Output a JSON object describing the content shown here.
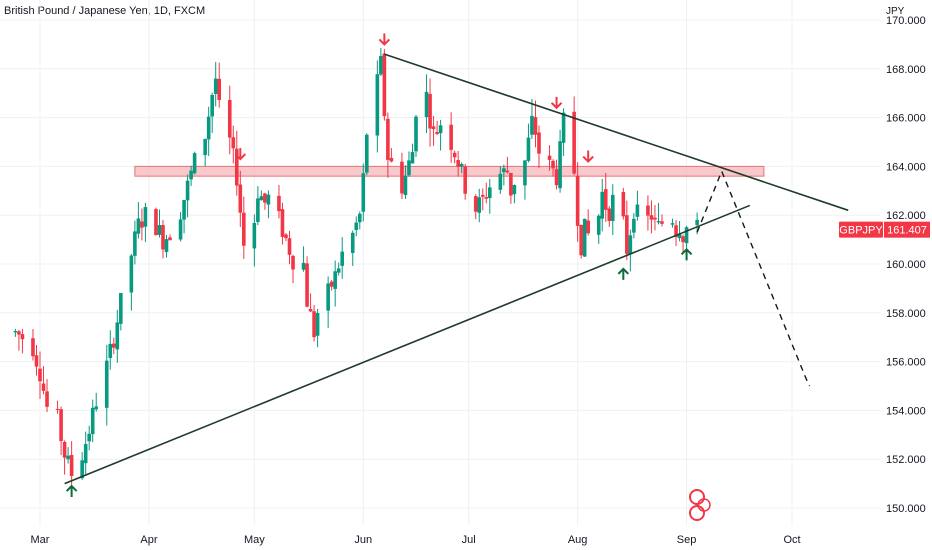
{
  "chart_data": {
    "type": "candlestick",
    "title": "British Pound / Japanese Yen, 1D, FXCM",
    "unit": "JPY",
    "symbol": "GBPJPY",
    "last_price": "161.407",
    "ylim": [
      149.4,
      170.5
    ],
    "y_ticks": [
      150,
      152,
      154,
      156,
      158,
      160,
      162,
      164,
      166,
      168,
      170
    ],
    "y_tick_labels": [
      "150.000",
      "152.000",
      "154.000",
      "156.000",
      "158.000",
      "160.000",
      "162.000",
      "164.000",
      "166.000",
      "168.000",
      "170.000"
    ],
    "x_labels": [
      {
        "label": "Mar",
        "date": "2023-03-01"
      },
      {
        "label": "Apr",
        "date": "2023-04-01"
      },
      {
        "label": "May",
        "date": "2023-05-01"
      },
      {
        "label": "Jun",
        "date": "2023-06-01"
      },
      {
        "label": "Jul",
        "date": "2023-07-01"
      },
      {
        "label": "Aug",
        "date": "2023-08-01"
      },
      {
        "label": "Sep",
        "date": "2023-09-01"
      },
      {
        "label": "Oct",
        "date": "2023-10-01"
      }
    ],
    "colors": {
      "up": "#089981",
      "down": "#f23645",
      "trendline": "#1f3b2b",
      "resistance_fill": "#f5b5bb",
      "resistance_border": "#e57373",
      "price_badge": "#f23645",
      "arrow_down": "#f23645",
      "arrow_up": "#0b6b3a",
      "grid": "#eef0f3"
    },
    "candles_anchor": [
      [
        "2023-02-22",
        157.2
      ],
      [
        "2023-02-25",
        156.9
      ],
      [
        "2023-02-27",
        156.6
      ],
      [
        "2023-03-01",
        155.6
      ],
      [
        "2023-03-03",
        154.1
      ],
      [
        "2023-03-06",
        153.6
      ],
      [
        "2023-03-08",
        152.2
      ],
      [
        "2023-03-10",
        151.4
      ],
      [
        "2023-03-13",
        152.2
      ],
      [
        "2023-03-15",
        153.2
      ],
      [
        "2023-03-17",
        154.4
      ],
      [
        "2023-03-20",
        155.8
      ],
      [
        "2023-03-22",
        157.0
      ],
      [
        "2023-03-24",
        158.4
      ],
      [
        "2023-03-27",
        160.4
      ],
      [
        "2023-03-29",
        161.6
      ],
      [
        "2023-03-31",
        162.0
      ],
      [
        "2023-04-03",
        161.6
      ],
      [
        "2023-04-05",
        161.0
      ],
      [
        "2023-04-07",
        161.3
      ],
      [
        "2023-04-10",
        162.2
      ],
      [
        "2023-04-12",
        163.2
      ],
      [
        "2023-04-14",
        164.2
      ],
      [
        "2023-04-17",
        165.3
      ],
      [
        "2023-04-19",
        167.0
      ],
      [
        "2023-04-20",
        167.6
      ],
      [
        "2023-04-21",
        166.3
      ],
      [
        "2023-04-24",
        165.0
      ],
      [
        "2023-04-26",
        163.6
      ],
      [
        "2023-04-27",
        162.2
      ],
      [
        "2023-04-28",
        160.8
      ],
      [
        "2023-05-01",
        161.8
      ],
      [
        "2023-05-02",
        163.0
      ],
      [
        "2023-05-04",
        162.5
      ],
      [
        "2023-05-05",
        162.7
      ],
      [
        "2023-05-08",
        161.8
      ],
      [
        "2023-05-10",
        161.0
      ],
      [
        "2023-05-12",
        160.2
      ],
      [
        "2023-05-15",
        160.0
      ],
      [
        "2023-05-16",
        158.5
      ],
      [
        "2023-05-18",
        157.2
      ],
      [
        "2023-05-19",
        158.0
      ],
      [
        "2023-05-22",
        158.8
      ],
      [
        "2023-05-24",
        159.5
      ],
      [
        "2023-05-26",
        160.4
      ],
      [
        "2023-05-29",
        161.2
      ],
      [
        "2023-05-31",
        162.0
      ],
      [
        "2023-06-01",
        163.5
      ],
      [
        "2023-06-02",
        165.4
      ],
      [
        "2023-06-05",
        167.4
      ],
      [
        "2023-06-06",
        168.2
      ],
      [
        "2023-06-07",
        166.2
      ],
      [
        "2023-06-08",
        164.4
      ],
      [
        "2023-06-12",
        163.2
      ],
      [
        "2023-06-13",
        163.6
      ],
      [
        "2023-06-15",
        164.6
      ],
      [
        "2023-06-16",
        166.4
      ],
      [
        "2023-06-19",
        166.9
      ],
      [
        "2023-06-20",
        166.0
      ],
      [
        "2023-06-21",
        165.3
      ],
      [
        "2023-06-22",
        165.5
      ],
      [
        "2023-06-23",
        165.8
      ],
      [
        "2023-06-26",
        165.0
      ],
      [
        "2023-06-28",
        164.2
      ],
      [
        "2023-06-30",
        163.2
      ],
      [
        "2023-07-03",
        162.3
      ],
      [
        "2023-07-05",
        162.6
      ],
      [
        "2023-07-07",
        163.2
      ],
      [
        "2023-07-10",
        163.7
      ],
      [
        "2023-07-12",
        163.8
      ],
      [
        "2023-07-13",
        163.0
      ],
      [
        "2023-07-14",
        163.4
      ],
      [
        "2023-07-17",
        164.2
      ],
      [
        "2023-07-18",
        165.0
      ],
      [
        "2023-07-19",
        165.8
      ],
      [
        "2023-07-20",
        165.4
      ],
      [
        "2023-07-21",
        164.6
      ],
      [
        "2023-07-24",
        164.0
      ],
      [
        "2023-07-26",
        163.6
      ],
      [
        "2023-07-27",
        164.6
      ],
      [
        "2023-07-28",
        165.8
      ],
      [
        "2023-07-31",
        163.8
      ],
      [
        "2023-08-01",
        162.0
      ],
      [
        "2023-08-02",
        160.8
      ],
      [
        "2023-08-03",
        161.4
      ],
      [
        "2023-08-04",
        161.2
      ],
      [
        "2023-08-07",
        162.0
      ],
      [
        "2023-08-08",
        162.9
      ],
      [
        "2023-08-09",
        162.4
      ],
      [
        "2023-08-10",
        162.2
      ],
      [
        "2023-08-11",
        162.6
      ],
      [
        "2023-08-14",
        161.6
      ],
      [
        "2023-08-15",
        160.6
      ],
      [
        "2023-08-16",
        161.4
      ],
      [
        "2023-08-17",
        162.3
      ],
      [
        "2023-08-18",
        162.0
      ],
      [
        "2023-08-21",
        161.8
      ],
      [
        "2023-08-22",
        162.0
      ],
      [
        "2023-08-23",
        161.6
      ],
      [
        "2023-08-24",
        161.5
      ],
      [
        "2023-08-25",
        161.7
      ],
      [
        "2023-08-28",
        161.9
      ],
      [
        "2023-08-29",
        161.4
      ],
      [
        "2023-08-30",
        161.6
      ],
      [
        "2023-08-31",
        161.2
      ],
      [
        "2023-09-01",
        161.5
      ],
      [
        "2023-09-04",
        161.4
      ]
    ],
    "annotations": {
      "resistance_zone": {
        "from": "2023-03-28",
        "to": "2023-09-23",
        "y_low": 163.6,
        "y_high": 164.0
      },
      "upper_trendline": {
        "from": [
          "2023-06-07",
          168.6
        ],
        "to": [
          "2023-10-17",
          162.2
        ]
      },
      "lower_trendline": {
        "from": [
          "2023-03-08",
          151.0
        ],
        "to": [
          "2023-09-19",
          162.4
        ]
      },
      "projection_path": [
        [
          "2023-09-04",
          161.3
        ],
        [
          "2023-09-11",
          163.8
        ],
        [
          "2023-10-05",
          155.3
        ],
        [
          "2023-10-06",
          155.0
        ]
      ],
      "down_arrows": [
        [
          "2023-06-07",
          169.0
        ],
        [
          "2023-04-27",
          164.3
        ],
        [
          "2023-07-26",
          166.4
        ],
        [
          "2023-08-04",
          164.2
        ]
      ],
      "up_arrows": [
        [
          "2023-03-10",
          150.9
        ],
        [
          "2023-08-14",
          159.8
        ],
        [
          "2023-09-01",
          160.6
        ]
      ]
    }
  }
}
